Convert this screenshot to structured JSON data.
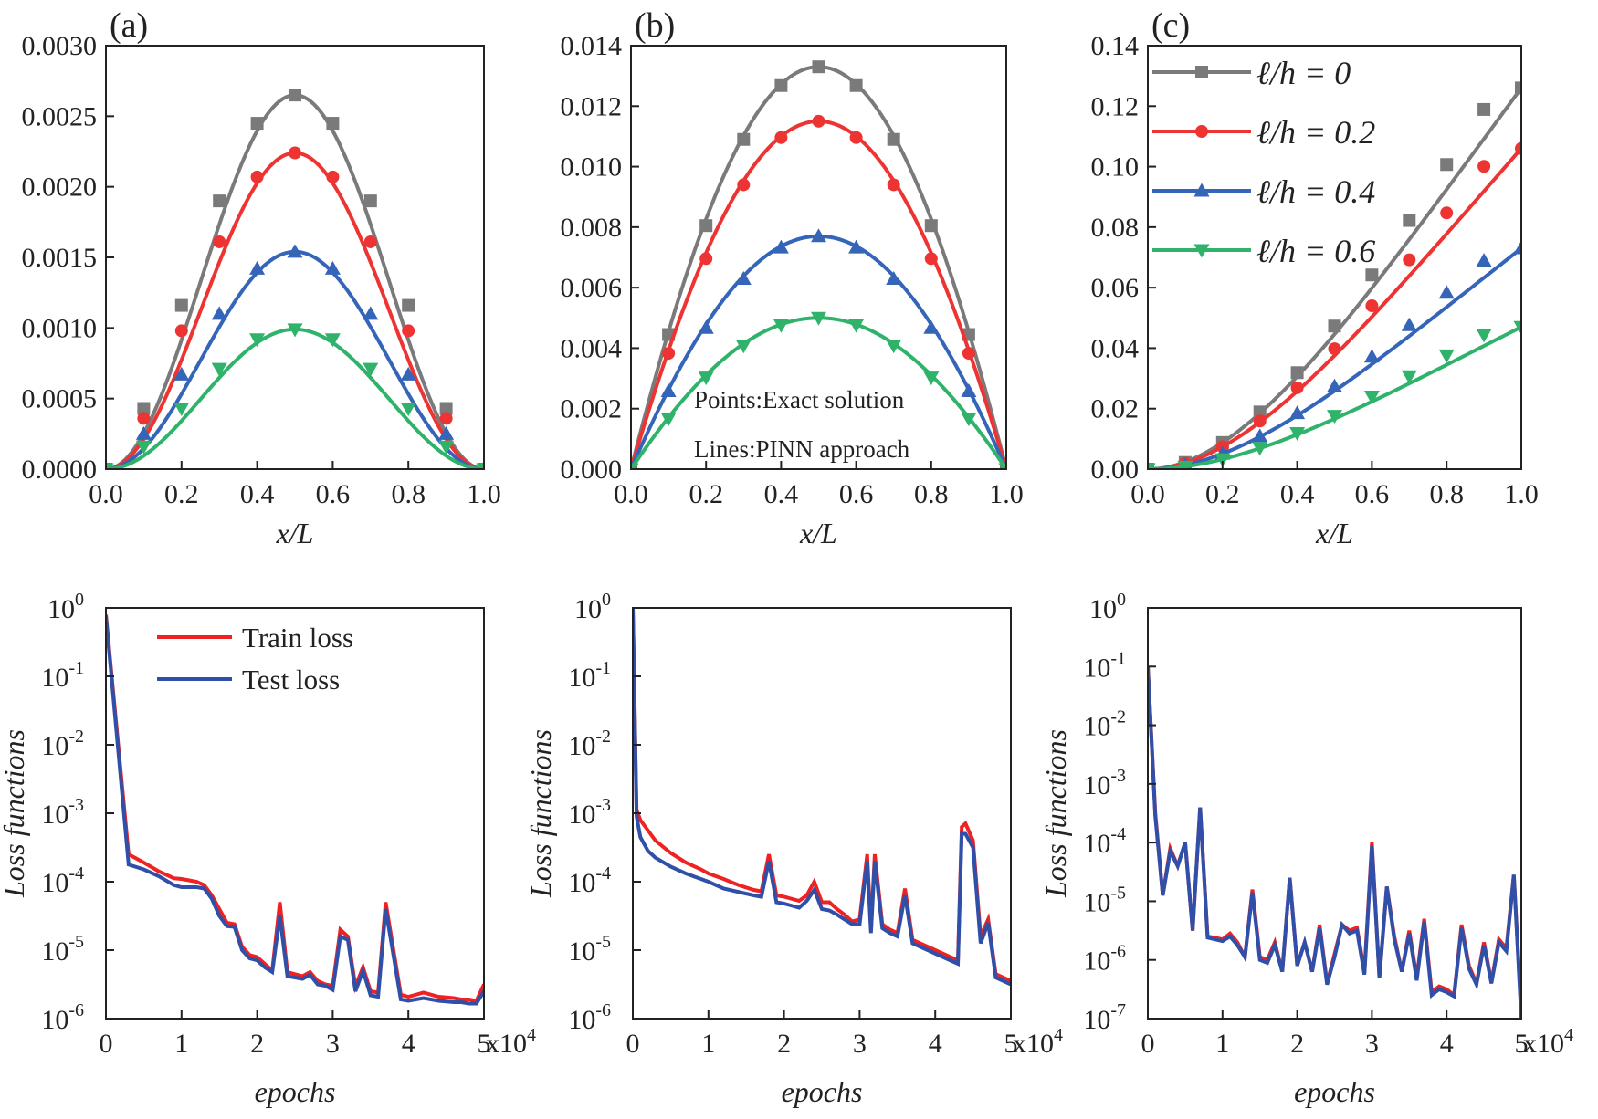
{
  "figure": {
    "top_row": [
      {
        "panel_label": "(a)",
        "chart_type": "line",
        "xlabel": "x/L",
        "ylabel": "",
        "xlim": [
          0,
          1
        ],
        "ylim": [
          0,
          0.003
        ],
        "xticks": [
          0.0,
          0.2,
          0.4,
          0.6,
          0.8,
          1.0
        ],
        "xtick_labels": [
          "0.0",
          "0.2",
          "0.4",
          "0.6",
          "0.8",
          "1.0"
        ],
        "yticks": [
          0,
          0.0005,
          0.001,
          0.0015,
          0.002,
          0.0025,
          0.003
        ],
        "ytick_labels": [
          "0.0000",
          "0.0005",
          "0.0010",
          "0.0015",
          "0.0020",
          "0.0025",
          "0.0030"
        ],
        "curve_shape": "sin",
        "peaks": [
          0.00265,
          0.00224,
          0.00154,
          0.00099
        ],
        "annotations": []
      },
      {
        "panel_label": "(b)",
        "chart_type": "line",
        "xlabel": "x/L",
        "ylabel": "",
        "xlim": [
          0,
          1
        ],
        "ylim": [
          0,
          0.014
        ],
        "xticks": [
          0.0,
          0.2,
          0.4,
          0.6,
          0.8,
          1.0
        ],
        "xtick_labels": [
          "0.0",
          "0.2",
          "0.4",
          "0.6",
          "0.8",
          "1.0"
        ],
        "yticks": [
          0,
          0.002,
          0.004,
          0.006,
          0.008,
          0.01,
          0.012,
          0.014
        ],
        "ytick_labels": [
          "0.000",
          "0.002",
          "0.004",
          "0.006",
          "0.008",
          "0.010",
          "0.012",
          "0.014"
        ],
        "curve_shape": "parabola",
        "peaks": [
          0.0133,
          0.0115,
          0.0077,
          0.005
        ],
        "annotations": [
          "Points:Exact solution",
          "Lines:PINN approach"
        ]
      },
      {
        "panel_label": "(c)",
        "chart_type": "line",
        "xlabel": "x/L",
        "ylabel": "",
        "xlim": [
          0,
          1
        ],
        "ylim": [
          0,
          0.14
        ],
        "xticks": [
          0.0,
          0.2,
          0.4,
          0.6,
          0.8,
          1.0
        ],
        "xtick_labels": [
          "0.0",
          "0.2",
          "0.4",
          "0.6",
          "0.8",
          "1.0"
        ],
        "yticks": [
          0,
          0.02,
          0.04,
          0.06,
          0.08,
          0.1,
          0.12,
          0.14
        ],
        "ytick_labels": [
          "0.00",
          "0.02",
          "0.04",
          "0.06",
          "0.08",
          "0.10",
          "0.12",
          "0.14"
        ],
        "curve_shape": "cantilever",
        "peaks": [
          0.126,
          0.106,
          0.073,
          0.047
        ],
        "annotations": []
      }
    ],
    "series_legend": [
      {
        "name": "ℓ/h = 0",
        "color": "#7a7a7a",
        "marker": "square"
      },
      {
        "name": "ℓ/h = 0.2",
        "color": "#ee3333",
        "marker": "circle"
      },
      {
        "name": "ℓ/h = 0.4",
        "color": "#3565b8",
        "marker": "triangle-up"
      },
      {
        "name": "ℓ/h = 0.6",
        "color": "#2fb36b",
        "marker": "triangle-down"
      }
    ],
    "bottom_row": [
      {
        "chart_type": "line",
        "xlabel": "epochs",
        "ylabel": "Loss functions",
        "xlim": [
          0,
          5
        ],
        "xtick_labels": [
          "0",
          "1",
          "2",
          "3",
          "4",
          "5"
        ],
        "x_multiplier": "x10",
        "x_multiplier_exp": "4",
        "ylog_range": [
          -6,
          0
        ],
        "train_x": [
          0,
          0.3,
          0.5,
          0.7,
          0.9,
          1.0,
          1.1,
          1.2,
          1.3,
          1.4,
          1.5,
          1.6,
          1.7,
          1.8,
          1.9,
          2.0,
          2.1,
          2.2,
          2.3,
          2.4,
          2.5,
          2.6,
          2.7,
          2.8,
          2.9,
          3.0,
          3.1,
          3.2,
          3.3,
          3.4,
          3.5,
          3.6,
          3.7,
          3.9,
          4.0,
          4.1,
          4.2,
          4.4,
          4.6,
          4.7,
          4.8,
          4.9,
          5.0
        ],
        "train_logy": [
          -0.1,
          -3.6,
          -3.72,
          -3.85,
          -3.95,
          -3.96,
          -3.98,
          -4.0,
          -4.05,
          -4.2,
          -4.4,
          -4.6,
          -4.62,
          -4.95,
          -5.07,
          -5.1,
          -5.2,
          -5.3,
          -4.3,
          -5.32,
          -5.35,
          -5.38,
          -5.32,
          -5.45,
          -5.5,
          -5.52,
          -4.7,
          -4.8,
          -5.53,
          -5.25,
          -5.6,
          -5.62,
          -4.3,
          -5.65,
          -5.68,
          -5.65,
          -5.62,
          -5.68,
          -5.7,
          -5.72,
          -5.72,
          -5.74,
          -5.5
        ],
        "test_x": [
          0,
          0.3,
          0.5,
          0.7,
          0.9,
          1.0,
          1.1,
          1.2,
          1.3,
          1.4,
          1.5,
          1.6,
          1.7,
          1.8,
          1.9,
          2.0,
          2.1,
          2.2,
          2.3,
          2.4,
          2.5,
          2.6,
          2.7,
          2.8,
          2.9,
          3.0,
          3.1,
          3.2,
          3.3,
          3.4,
          3.5,
          3.6,
          3.7,
          3.9,
          4.0,
          4.1,
          4.2,
          4.4,
          4.6,
          4.7,
          4.8,
          4.9,
          5.0
        ],
        "test_logy": [
          -0.12,
          -3.75,
          -3.82,
          -3.92,
          -4.05,
          -4.08,
          -4.08,
          -4.08,
          -4.1,
          -4.25,
          -4.5,
          -4.65,
          -4.66,
          -5.0,
          -5.12,
          -5.15,
          -5.25,
          -5.32,
          -4.5,
          -5.38,
          -5.4,
          -5.42,
          -5.36,
          -5.5,
          -5.52,
          -5.58,
          -4.8,
          -4.85,
          -5.6,
          -5.3,
          -5.66,
          -5.68,
          -4.4,
          -5.72,
          -5.74,
          -5.72,
          -5.7,
          -5.74,
          -5.76,
          -5.76,
          -5.78,
          -5.78,
          -5.6
        ]
      },
      {
        "chart_type": "line",
        "xlabel": "epochs",
        "ylabel": "Loss functions",
        "xlim": [
          0,
          5
        ],
        "xtick_labels": [
          "0",
          "1",
          "2",
          "3",
          "4",
          "5"
        ],
        "x_multiplier": "x10",
        "x_multiplier_exp": "4",
        "ylog_range": [
          -6,
          0
        ],
        "train_x": [
          0,
          0.05,
          0.1,
          0.2,
          0.3,
          0.5,
          0.7,
          0.9,
          1.0,
          1.2,
          1.4,
          1.6,
          1.7,
          1.8,
          1.9,
          2.0,
          2.1,
          2.2,
          2.3,
          2.4,
          2.5,
          2.6,
          2.7,
          2.8,
          2.9,
          3.0,
          3.1,
          3.15,
          3.2,
          3.3,
          3.4,
          3.5,
          3.6,
          3.7,
          3.8,
          3.9,
          4.0,
          4.1,
          4.2,
          4.3,
          4.35,
          4.4,
          4.5,
          4.6,
          4.7,
          4.8,
          4.9,
          5.0
        ],
        "train_logy": [
          0.0,
          -2.95,
          -3.1,
          -3.25,
          -3.4,
          -3.58,
          -3.72,
          -3.82,
          -3.88,
          -3.96,
          -4.05,
          -4.12,
          -4.14,
          -3.6,
          -4.2,
          -4.22,
          -4.25,
          -4.28,
          -4.2,
          -4.0,
          -4.3,
          -4.3,
          -4.4,
          -4.48,
          -4.58,
          -4.55,
          -3.6,
          -4.7,
          -3.6,
          -4.62,
          -4.7,
          -4.75,
          -4.1,
          -4.85,
          -4.9,
          -4.95,
          -5.0,
          -5.05,
          -5.1,
          -5.15,
          -3.2,
          -3.15,
          -3.4,
          -4.8,
          -4.55,
          -5.35,
          -5.4,
          -5.45
        ],
        "test_x": [
          0,
          0.05,
          0.1,
          0.2,
          0.3,
          0.5,
          0.7,
          0.9,
          1.0,
          1.2,
          1.4,
          1.6,
          1.7,
          1.8,
          1.9,
          2.0,
          2.1,
          2.2,
          2.3,
          2.4,
          2.5,
          2.6,
          2.7,
          2.8,
          2.9,
          3.0,
          3.1,
          3.15,
          3.2,
          3.3,
          3.4,
          3.5,
          3.6,
          3.7,
          3.8,
          3.9,
          4.0,
          4.1,
          4.2,
          4.3,
          4.35,
          4.4,
          4.5,
          4.6,
          4.7,
          4.8,
          4.9,
          5.0
        ],
        "test_logy": [
          0.0,
          -3.05,
          -3.35,
          -3.55,
          -3.65,
          -3.78,
          -3.88,
          -3.96,
          -4.0,
          -4.1,
          -4.15,
          -4.2,
          -4.22,
          -3.7,
          -4.3,
          -4.32,
          -4.35,
          -4.38,
          -4.28,
          -4.12,
          -4.4,
          -4.42,
          -4.48,
          -4.55,
          -4.62,
          -4.62,
          -3.7,
          -4.75,
          -3.7,
          -4.68,
          -4.75,
          -4.8,
          -4.2,
          -4.9,
          -4.95,
          -5.0,
          -5.05,
          -5.1,
          -5.15,
          -5.2,
          -3.3,
          -3.3,
          -3.5,
          -4.9,
          -4.6,
          -5.4,
          -5.45,
          -5.5
        ]
      },
      {
        "chart_type": "line",
        "xlabel": "epochs",
        "ylabel": "Loss functions",
        "xlim": [
          0,
          5
        ],
        "xtick_labels": [
          "0",
          "1",
          "2",
          "3",
          "4",
          "5"
        ],
        "x_multiplier": "x10",
        "x_multiplier_exp": "4",
        "ylog_range": [
          -7,
          0
        ],
        "train_x": [
          0,
          0.1,
          0.2,
          0.3,
          0.4,
          0.5,
          0.6,
          0.7,
          0.8,
          0.9,
          1.0,
          1.1,
          1.2,
          1.3,
          1.4,
          1.5,
          1.6,
          1.7,
          1.8,
          1.9,
          2.0,
          2.1,
          2.2,
          2.3,
          2.4,
          2.5,
          2.6,
          2.7,
          2.8,
          2.9,
          3.0,
          3.1,
          3.2,
          3.3,
          3.4,
          3.5,
          3.6,
          3.7,
          3.8,
          3.9,
          4.0,
          4.1,
          4.2,
          4.3,
          4.4,
          4.5,
          4.6,
          4.7,
          4.8,
          4.9,
          5.0
        ],
        "train_logy": [
          -1.0,
          -3.5,
          -4.9,
          -4.1,
          -4.4,
          -4.0,
          -5.5,
          -3.4,
          -5.6,
          -5.62,
          -5.65,
          -5.55,
          -5.7,
          -5.95,
          -4.8,
          -5.95,
          -6.0,
          -5.7,
          -6.2,
          -4.6,
          -6.1,
          -5.7,
          -6.2,
          -5.4,
          -6.4,
          -5.9,
          -5.4,
          -5.5,
          -5.45,
          -6.2,
          -4.0,
          -6.3,
          -4.75,
          -5.6,
          -6.2,
          -5.5,
          -6.3,
          -5.3,
          -6.55,
          -6.45,
          -6.5,
          -6.6,
          -5.4,
          -6.1,
          -6.4,
          -5.7,
          -6.38,
          -5.65,
          -5.8,
          -4.55,
          -6.9
        ],
        "test_x": [
          0,
          0.1,
          0.2,
          0.3,
          0.4,
          0.5,
          0.6,
          0.7,
          0.8,
          0.9,
          1.0,
          1.1,
          1.2,
          1.3,
          1.4,
          1.5,
          1.6,
          1.7,
          1.8,
          1.9,
          2.0,
          2.1,
          2.2,
          2.3,
          2.4,
          2.5,
          2.6,
          2.7,
          2.8,
          2.9,
          3.0,
          3.1,
          3.2,
          3.3,
          3.4,
          3.5,
          3.6,
          3.7,
          3.8,
          3.9,
          4.0,
          4.1,
          4.2,
          4.3,
          4.4,
          4.5,
          4.6,
          4.7,
          4.8,
          4.9,
          5.0
        ],
        "test_logy": [
          -1.0,
          -3.55,
          -4.9,
          -4.15,
          -4.4,
          -4.0,
          -5.5,
          -3.4,
          -5.62,
          -5.65,
          -5.68,
          -5.6,
          -5.75,
          -5.95,
          -4.85,
          -6.0,
          -6.05,
          -5.75,
          -6.2,
          -4.6,
          -6.1,
          -5.7,
          -6.2,
          -5.45,
          -6.42,
          -5.95,
          -5.4,
          -5.55,
          -5.5,
          -6.25,
          -4.05,
          -6.3,
          -4.75,
          -5.65,
          -6.2,
          -5.55,
          -6.35,
          -5.35,
          -6.6,
          -6.5,
          -6.55,
          -6.62,
          -5.45,
          -6.15,
          -6.42,
          -5.75,
          -6.4,
          -5.7,
          -5.85,
          -4.55,
          -7.0
        ]
      }
    ],
    "loss_legend": [
      {
        "name": "Train loss",
        "color": "#ee2222"
      },
      {
        "name": "Test loss",
        "color": "#2f4fa8"
      }
    ]
  },
  "chart_data": [
    {
      "type": "line",
      "title": "(a)",
      "xlabel": "x/L",
      "ylabel": "",
      "xlim": [
        0,
        1
      ],
      "ylim": [
        0,
        0.003
      ],
      "x": [
        0.0,
        0.1,
        0.2,
        0.3,
        0.4,
        0.5,
        0.6,
        0.7,
        0.8,
        0.9,
        1.0
      ],
      "series": [
        {
          "name": "ℓ/h = 0",
          "values": [
            0.0,
            0.00043,
            0.00116,
            0.0019,
            0.00245,
            0.00265,
            0.00245,
            0.0019,
            0.00116,
            0.00043,
            0.0
          ]
        },
        {
          "name": "ℓ/h = 0.2",
          "values": [
            0.0,
            0.00036,
            0.00098,
            0.00161,
            0.00207,
            0.00224,
            0.00207,
            0.00161,
            0.00098,
            0.00036,
            0.0
          ]
        },
        {
          "name": "ℓ/h = 0.4",
          "values": [
            0.0,
            0.00025,
            0.00067,
            0.0011,
            0.00142,
            0.00154,
            0.00142,
            0.0011,
            0.00067,
            0.00025,
            0.0
          ]
        },
        {
          "name": "ℓ/h = 0.6",
          "values": [
            0.0,
            0.00016,
            0.00043,
            0.00071,
            0.00092,
            0.00099,
            0.00092,
            0.00071,
            0.00043,
            0.00016,
            0.0
          ]
        }
      ]
    },
    {
      "type": "line",
      "title": "(b)",
      "xlabel": "x/L",
      "ylabel": "",
      "xlim": [
        0,
        1
      ],
      "ylim": [
        0,
        0.014
      ],
      "x": [
        0.0,
        0.1,
        0.2,
        0.3,
        0.4,
        0.5,
        0.6,
        0.7,
        0.8,
        0.9,
        1.0
      ],
      "series": [
        {
          "name": "ℓ/h = 0",
          "values": [
            0.0,
            0.00445,
            0.00805,
            0.0109,
            0.01268,
            0.0133,
            0.01268,
            0.0109,
            0.00805,
            0.00445,
            0.0
          ]
        },
        {
          "name": "ℓ/h = 0.2",
          "values": [
            0.0,
            0.00383,
            0.00696,
            0.0094,
            0.01096,
            0.0115,
            0.01096,
            0.0094,
            0.00696,
            0.00383,
            0.0
          ]
        },
        {
          "name": "ℓ/h = 0.4",
          "values": [
            0.0,
            0.00258,
            0.00467,
            0.00629,
            0.00733,
            0.0077,
            0.00733,
            0.00629,
            0.00467,
            0.00258,
            0.0
          ]
        },
        {
          "name": "ℓ/h = 0.6",
          "values": [
            0.0,
            0.00167,
            0.00303,
            0.00408,
            0.00476,
            0.005,
            0.00476,
            0.00408,
            0.00303,
            0.00167,
            0.0
          ]
        }
      ]
    },
    {
      "type": "line",
      "title": "(c)",
      "xlabel": "x/L",
      "ylabel": "",
      "xlim": [
        0,
        1
      ],
      "ylim": [
        0,
        0.14
      ],
      "x": [
        0.0,
        0.1,
        0.2,
        0.3,
        0.4,
        0.5,
        0.6,
        0.7,
        0.8,
        0.9,
        1.0
      ],
      "series": [
        {
          "name": "ℓ/h = 0",
          "values": [
            0.0,
            0.0022,
            0.0088,
            0.0189,
            0.0319,
            0.0473,
            0.0642,
            0.0822,
            0.1007,
            0.1189,
            0.126
          ]
        },
        {
          "name": "ℓ/h = 0.2",
          "values": [
            0.0,
            0.0019,
            0.0074,
            0.0159,
            0.0269,
            0.0398,
            0.054,
            0.0692,
            0.0847,
            0.1001,
            0.106
          ]
        },
        {
          "name": "ℓ/h = 0.4",
          "values": [
            0.0,
            0.0013,
            0.0051,
            0.0109,
            0.0185,
            0.0274,
            0.0372,
            0.0476,
            0.0583,
            0.0689,
            0.073
          ]
        },
        {
          "name": "ℓ/h = 0.6",
          "values": [
            0.0,
            0.0008,
            0.0033,
            0.007,
            0.0119,
            0.0176,
            0.024,
            0.0307,
            0.0376,
            0.0444,
            0.047
          ]
        }
      ]
    },
    {
      "type": "line",
      "title": "",
      "xlabel": "epochs",
      "ylabel": "Loss functions",
      "yscale": "log",
      "ylim": [
        1e-06,
        1
      ],
      "x_unit": "x10^4",
      "series": [
        "Train loss",
        "Test loss"
      ]
    },
    {
      "type": "line",
      "title": "",
      "xlabel": "epochs",
      "ylabel": "Loss functions",
      "yscale": "log",
      "ylim": [
        1e-06,
        1
      ],
      "x_unit": "x10^4",
      "series": [
        "Train loss",
        "Test loss"
      ]
    },
    {
      "type": "line",
      "title": "",
      "xlabel": "epochs",
      "ylabel": "Loss functions",
      "yscale": "log",
      "ylim": [
        1e-07,
        1
      ],
      "x_unit": "x10^4",
      "series": [
        "Train loss",
        "Test loss"
      ]
    }
  ]
}
